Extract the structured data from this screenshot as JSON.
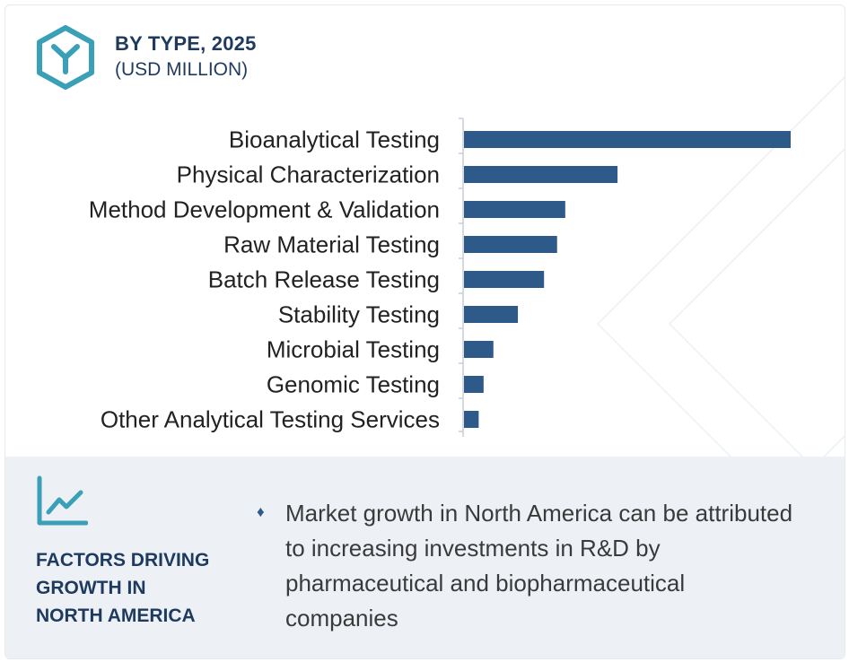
{
  "header": {
    "title": "BY TYPE, 2025",
    "subtitle": "(USD MILLION)",
    "logo_icon": "hexagon-y-logo-icon"
  },
  "colors": {
    "bar": "#2e5a8a",
    "accent": "#3aa0b8",
    "heading": "#1f3a5f",
    "panel": "#edf1f6"
  },
  "chart_data": {
    "type": "bar",
    "orientation": "horizontal",
    "categories": [
      "Bioanalytical Testing",
      "Physical Characterization",
      "Method Development & Validation",
      "Raw Material Testing",
      "Batch Release Testing",
      "Stability Testing",
      "Microbial Testing",
      "Genomic Testing",
      "Other Analytical Testing Services"
    ],
    "values": [
      100,
      47,
      31,
      28.5,
      24.5,
      16.5,
      9,
      6,
      4.5
    ],
    "xlim": [
      0,
      100
    ],
    "grid": false,
    "legend": "none"
  },
  "factors": {
    "icon": "trend-line-chart-icon",
    "title_lines": [
      "FACTORS DRIVING",
      "GROWTH IN",
      "NORTH AMERICA"
    ],
    "bullet_icon": "diamond-bullet-icon",
    "text": "Market growth in North America can be attributed to increasing investments in R&D by pharmaceutical and biopharmaceutical companies"
  }
}
